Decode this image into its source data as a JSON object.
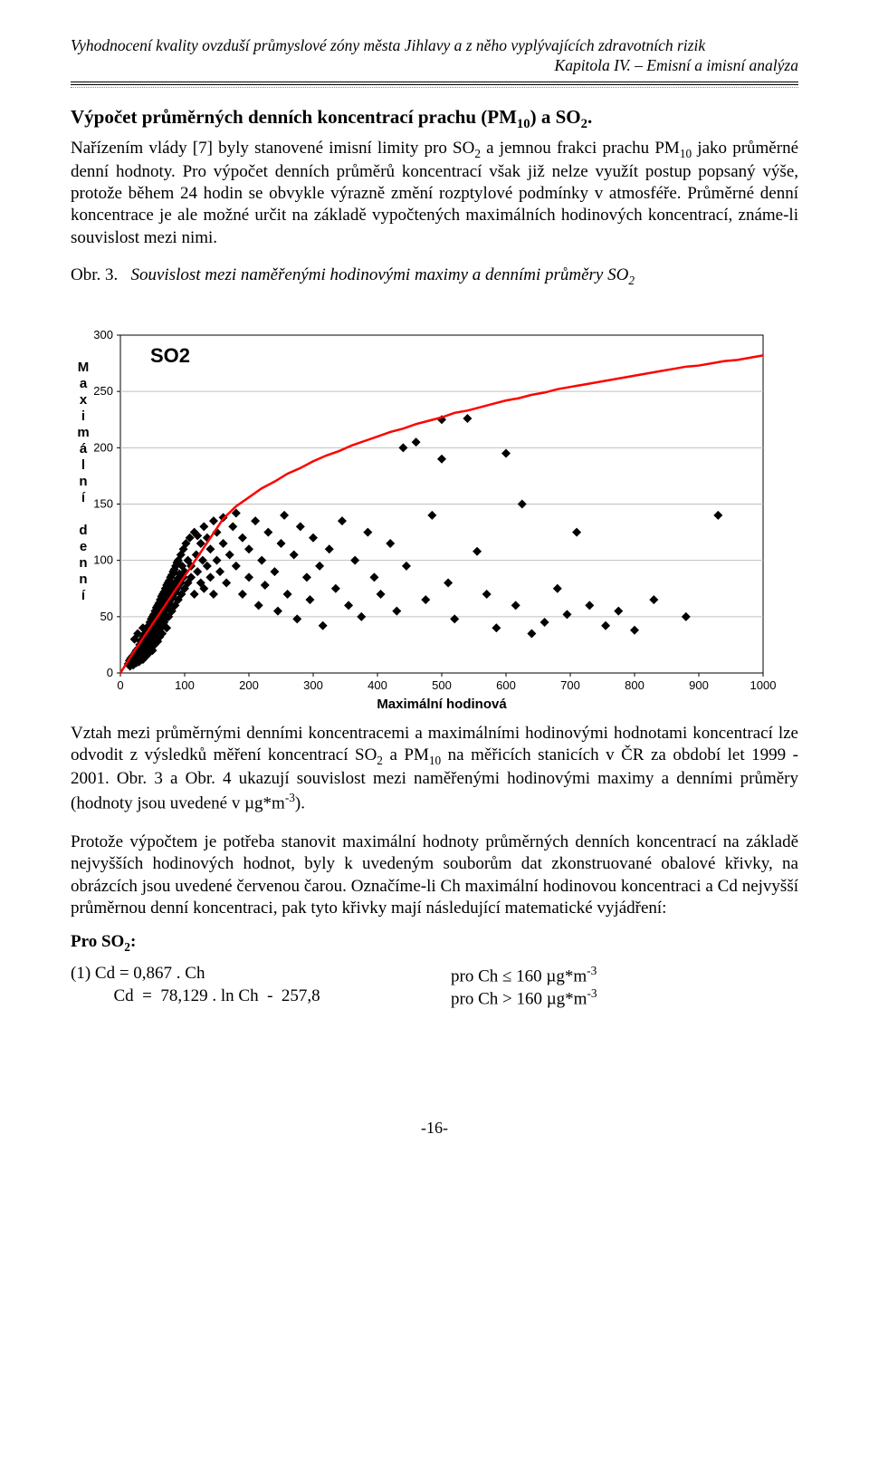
{
  "header": {
    "line1": "Vyhodnocení kvality ovzduší průmyslové zóny města Jihlavy a z něho vyplývajících zdravotních rizik",
    "line2": "Kapitola IV. – Emisní a imisní analýza"
  },
  "section": {
    "title_before_sub": "Výpočet průměrných denních koncentrací prachu (PM",
    "title_sub": "10",
    "title_after_sub": ") a SO",
    "title_sub2": "2",
    "title_end": "."
  },
  "paragraphs": {
    "p1_a": "Nařízením vlády [7] byly stanovené imisní limity pro SO",
    "p1_b": " a jemnou frakci prachu PM",
    "p1_c": " jako průměrné denní hodnoty. Pro výpočet denních průměrů koncentrací však již nelze využít postup popsaný výše, protože během 24 hodin se obvykle výrazně změní rozptylové podmínky v atmosféře. Průměrné denní koncentrace je ale možné určit na základě vypočtených maximálních hodinových koncentrací, známe-li souvislost mezi nimi.",
    "fig_label": "Obr. 3.",
    "fig_desc_a": "Souvislost mezi naměřenými hodinovými maximy a denními průměry SO",
    "p2_a": "Vztah mezi průměrnými denními koncentracemi a maximálními hodinovými hodnotami koncentrací lze odvodit z výsledků měření koncentrací SO",
    "p2_b": " a PM",
    "p2_c": " na měřicích stanicích v ČR za období let 1999 - 2001. Obr. 3 a Obr. 4 ukazují souvislost mezi naměřenými hodinovými maximy a denními průměry (hodnoty jsou uvedené v µg*m",
    "p2_d": ").",
    "p3": "Protože výpočtem je potřeba stanovit maximální hodnoty průměrných denních koncentrací na základě nejvyšších hodinových hodnot, byly k uvedeným souborům dat zkonstruované obalové křivky, na obrázcích jsou uvedené červenou čarou. Označíme-li  Ch  maximální hodinovou koncentraci a  Cd  nejvyšší průměrnou denní koncentraci, pak tyto křivky mají následující matematické vyjádření:"
  },
  "formulas": {
    "heading": "Pro SO",
    "heading_sub": "2",
    "heading_end": ":",
    "row1_lhs": "(1)     Cd  =  0,867 . Ch",
    "row1_rhs_a": "pro  Ch ≤ 160 µg*m",
    "row2_lhs": "          Cd  =  78,129 . ln Ch  -  257,8",
    "row2_rhs_a": "pro  Ch > 160 µg*m"
  },
  "subs": {
    "two": "2",
    "ten": "10",
    "neg3": "-3"
  },
  "page_num": "-16-",
  "chart": {
    "type": "scatter",
    "series_label": "SO2",
    "xlabel": "Maximální hodinová",
    "ylabel": "Maximální denní",
    "xlim": [
      0,
      1000
    ],
    "ylim": [
      0,
      300
    ],
    "ytick_step": 50,
    "xtick_step": 100,
    "yticks": [
      0,
      50,
      100,
      150,
      200,
      250,
      300
    ],
    "xticks": [
      0,
      100,
      200,
      300,
      400,
      500,
      600,
      700,
      800,
      900,
      1000
    ],
    "label_fontsize": 15,
    "tick_fontsize": 13,
    "series_label_fontsize": 22,
    "background_color": "#ffffff",
    "grid_color": "#c0c0c0",
    "axis_color": "#000000",
    "point_color": "#000000",
    "curve_color": "#ff0000",
    "curve_width": 2.5,
    "marker_size": 5,
    "curve": [
      [
        0,
        0
      ],
      [
        20,
        18
      ],
      [
        40,
        35
      ],
      [
        60,
        52
      ],
      [
        80,
        69
      ],
      [
        100,
        86
      ],
      [
        120,
        103
      ],
      [
        140,
        120
      ],
      [
        160,
        137
      ],
      [
        180,
        148
      ],
      [
        200,
        156
      ],
      [
        220,
        164
      ],
      [
        240,
        170
      ],
      [
        260,
        177
      ],
      [
        280,
        182
      ],
      [
        300,
        188
      ],
      [
        320,
        193
      ],
      [
        340,
        197
      ],
      [
        360,
        202
      ],
      [
        380,
        206
      ],
      [
        400,
        210
      ],
      [
        420,
        214
      ],
      [
        440,
        217
      ],
      [
        460,
        221
      ],
      [
        480,
        224
      ],
      [
        500,
        227
      ],
      [
        520,
        231
      ],
      [
        540,
        233
      ],
      [
        560,
        236
      ],
      [
        580,
        239
      ],
      [
        600,
        242
      ],
      [
        620,
        244
      ],
      [
        640,
        247
      ],
      [
        660,
        249
      ],
      [
        680,
        252
      ],
      [
        700,
        254
      ],
      [
        720,
        256
      ],
      [
        740,
        258
      ],
      [
        760,
        260
      ],
      [
        780,
        262
      ],
      [
        800,
        264
      ],
      [
        820,
        266
      ],
      [
        840,
        268
      ],
      [
        860,
        270
      ],
      [
        880,
        272
      ],
      [
        900,
        273
      ],
      [
        920,
        275
      ],
      [
        940,
        277
      ],
      [
        960,
        278
      ],
      [
        980,
        280
      ],
      [
        1000,
        282
      ]
    ],
    "points": [
      [
        12,
        8
      ],
      [
        14,
        11
      ],
      [
        15,
        6
      ],
      [
        16,
        13
      ],
      [
        18,
        9
      ],
      [
        19,
        15
      ],
      [
        20,
        12
      ],
      [
        20,
        7
      ],
      [
        21,
        16
      ],
      [
        22,
        10
      ],
      [
        23,
        18
      ],
      [
        24,
        14
      ],
      [
        25,
        20
      ],
      [
        25,
        9
      ],
      [
        26,
        17
      ],
      [
        27,
        12
      ],
      [
        28,
        22
      ],
      [
        28,
        15
      ],
      [
        29,
        10
      ],
      [
        30,
        25
      ],
      [
        30,
        18
      ],
      [
        31,
        13
      ],
      [
        32,
        28
      ],
      [
        32,
        21
      ],
      [
        33,
        16
      ],
      [
        34,
        30
      ],
      [
        34,
        24
      ],
      [
        35,
        19
      ],
      [
        35,
        12
      ],
      [
        36,
        32
      ],
      [
        36,
        26
      ],
      [
        37,
        21
      ],
      [
        38,
        35
      ],
      [
        38,
        29
      ],
      [
        38,
        17
      ],
      [
        39,
        23
      ],
      [
        40,
        38
      ],
      [
        40,
        31
      ],
      [
        40,
        15
      ],
      [
        41,
        26
      ],
      [
        42,
        40
      ],
      [
        42,
        34
      ],
      [
        42,
        20
      ],
      [
        43,
        28
      ],
      [
        44,
        42
      ],
      [
        44,
        36
      ],
      [
        44,
        24
      ],
      [
        45,
        30
      ],
      [
        45,
        18
      ],
      [
        46,
        45
      ],
      [
        46,
        38
      ],
      [
        47,
        32
      ],
      [
        47,
        22
      ],
      [
        48,
        48
      ],
      [
        48,
        40
      ],
      [
        48,
        27
      ],
      [
        49,
        34
      ],
      [
        50,
        50
      ],
      [
        50,
        43
      ],
      [
        50,
        30
      ],
      [
        50,
        20
      ],
      [
        51,
        37
      ],
      [
        52,
        52
      ],
      [
        52,
        45
      ],
      [
        52,
        33
      ],
      [
        53,
        39
      ],
      [
        53,
        25
      ],
      [
        54,
        55
      ],
      [
        54,
        47
      ],
      [
        55,
        41
      ],
      [
        55,
        30
      ],
      [
        56,
        58
      ],
      [
        56,
        49
      ],
      [
        57,
        43
      ],
      [
        57,
        35
      ],
      [
        58,
        60
      ],
      [
        58,
        51
      ],
      [
        58,
        28
      ],
      [
        59,
        45
      ],
      [
        60,
        62
      ],
      [
        60,
        53
      ],
      [
        60,
        38
      ],
      [
        61,
        47
      ],
      [
        61,
        32
      ],
      [
        62,
        65
      ],
      [
        62,
        55
      ],
      [
        63,
        49
      ],
      [
        63,
        40
      ],
      [
        64,
        68
      ],
      [
        64,
        58
      ],
      [
        65,
        51
      ],
      [
        65,
        35
      ],
      [
        66,
        70
      ],
      [
        66,
        60
      ],
      [
        67,
        53
      ],
      [
        68,
        72
      ],
      [
        68,
        62
      ],
      [
        68,
        45
      ],
      [
        69,
        55
      ],
      [
        70,
        75
      ],
      [
        70,
        64
      ],
      [
        70,
        48
      ],
      [
        71,
        57
      ],
      [
        72,
        78
      ],
      [
        72,
        66
      ],
      [
        72,
        40
      ],
      [
        73,
        59
      ],
      [
        74,
        80
      ],
      [
        74,
        68
      ],
      [
        75,
        62
      ],
      [
        75,
        50
      ],
      [
        76,
        82
      ],
      [
        76,
        70
      ],
      [
        77,
        64
      ],
      [
        78,
        85
      ],
      [
        78,
        72
      ],
      [
        79,
        66
      ],
      [
        80,
        87
      ],
      [
        80,
        74
      ],
      [
        80,
        55
      ],
      [
        81,
        68
      ],
      [
        82,
        90
      ],
      [
        82,
        76
      ],
      [
        83,
        70
      ],
      [
        84,
        92
      ],
      [
        84,
        78
      ],
      [
        85,
        72
      ],
      [
        85,
        60
      ],
      [
        86,
        95
      ],
      [
        86,
        80
      ],
      [
        87,
        74
      ],
      [
        88,
        98
      ],
      [
        88,
        82
      ],
      [
        89,
        76
      ],
      [
        90,
        100
      ],
      [
        90,
        84
      ],
      [
        90,
        65
      ],
      [
        92,
        88
      ],
      [
        94,
        105
      ],
      [
        94,
        80
      ],
      [
        95,
        70
      ],
      [
        96,
        95
      ],
      [
        98,
        110
      ],
      [
        98,
        85
      ],
      [
        100,
        75
      ],
      [
        100,
        90
      ],
      [
        102,
        115
      ],
      [
        105,
        80
      ],
      [
        105,
        100
      ],
      [
        108,
        120
      ],
      [
        110,
        85
      ],
      [
        110,
        95
      ],
      [
        115,
        125
      ],
      [
        115,
        70
      ],
      [
        118,
        105
      ],
      [
        120,
        90
      ],
      [
        120,
        122
      ],
      [
        125,
        80
      ],
      [
        125,
        115
      ],
      [
        128,
        100
      ],
      [
        130,
        130
      ],
      [
        130,
        75
      ],
      [
        135,
        95
      ],
      [
        135,
        120
      ],
      [
        140,
        85
      ],
      [
        140,
        110
      ],
      [
        145,
        135
      ],
      [
        145,
        70
      ],
      [
        150,
        100
      ],
      [
        150,
        125
      ],
      [
        155,
        90
      ],
      [
        160,
        115
      ],
      [
        160,
        138
      ],
      [
        165,
        80
      ],
      [
        170,
        105
      ],
      [
        175,
        130
      ],
      [
        180,
        95
      ],
      [
        180,
        142
      ],
      [
        190,
        70
      ],
      [
        190,
        120
      ],
      [
        200,
        85
      ],
      [
        200,
        110
      ],
      [
        210,
        135
      ],
      [
        215,
        60
      ],
      [
        220,
        100
      ],
      [
        225,
        78
      ],
      [
        230,
        125
      ],
      [
        240,
        90
      ],
      [
        245,
        55
      ],
      [
        250,
        115
      ],
      [
        255,
        140
      ],
      [
        260,
        70
      ],
      [
        270,
        105
      ],
      [
        275,
        48
      ],
      [
        280,
        130
      ],
      [
        290,
        85
      ],
      [
        295,
        65
      ],
      [
        300,
        120
      ],
      [
        310,
        95
      ],
      [
        315,
        42
      ],
      [
        325,
        110
      ],
      [
        335,
        75
      ],
      [
        345,
        135
      ],
      [
        355,
        60
      ],
      [
        365,
        100
      ],
      [
        375,
        50
      ],
      [
        385,
        125
      ],
      [
        395,
        85
      ],
      [
        405,
        70
      ],
      [
        420,
        115
      ],
      [
        430,
        55
      ],
      [
        440,
        200
      ],
      [
        445,
        95
      ],
      [
        460,
        205
      ],
      [
        475,
        65
      ],
      [
        485,
        140
      ],
      [
        500,
        225
      ],
      [
        500,
        190
      ],
      [
        510,
        80
      ],
      [
        520,
        48
      ],
      [
        540,
        226
      ],
      [
        555,
        108
      ],
      [
        570,
        70
      ],
      [
        585,
        40
      ],
      [
        600,
        195
      ],
      [
        615,
        60
      ],
      [
        625,
        150
      ],
      [
        640,
        35
      ],
      [
        660,
        45
      ],
      [
        680,
        75
      ],
      [
        695,
        52
      ],
      [
        710,
        125
      ],
      [
        730,
        60
      ],
      [
        755,
        42
      ],
      [
        775,
        55
      ],
      [
        800,
        38
      ],
      [
        830,
        65
      ],
      [
        880,
        50
      ],
      [
        930,
        140
      ],
      [
        35,
        40
      ],
      [
        22,
        30
      ],
      [
        27,
        35
      ]
    ]
  }
}
